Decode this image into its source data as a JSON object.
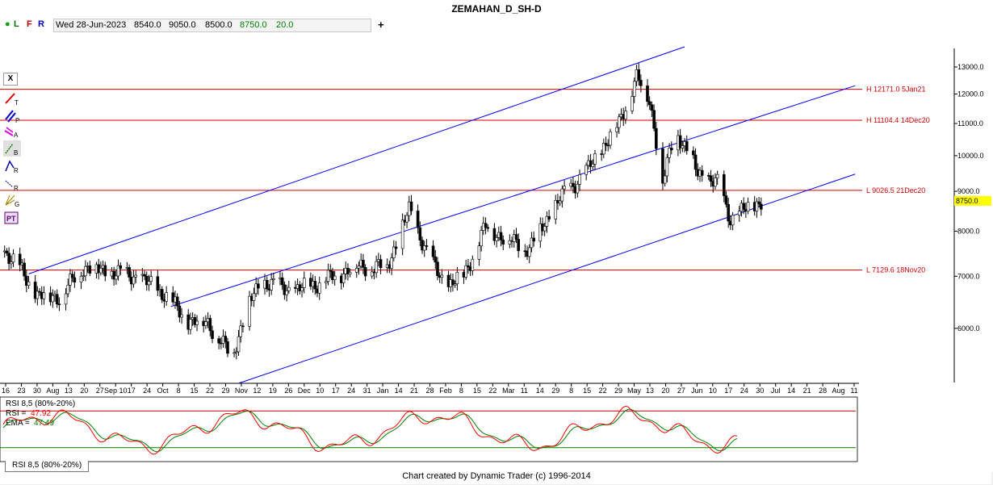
{
  "title": "ZEMAHAN_D_SH-D",
  "info": {
    "indicators": [
      "L",
      "F",
      "R"
    ],
    "date": "Wed 28-Jun-2023",
    "open": "8540.0",
    "high": "9050.0",
    "low": "8500.0",
    "close": "8750.0",
    "change": "20.0"
  },
  "toolbar": {
    "close_label": "X",
    "tools": [
      "T",
      "P",
      "A",
      "B",
      "R",
      "R",
      "G",
      "PT"
    ]
  },
  "rsi_tab": "RSI 8,5 (80%-20%)",
  "footer": "Chart created by Dynamic Trader  (c) 1996-2014",
  "chart_data": [
    {
      "type": "candlestick",
      "title": "ZEMAHAN_D_SH-D",
      "y_axis": {
        "scale": "log",
        "ticks": [
          "6000.0",
          "7000.0",
          "8000.0",
          "9000.0",
          "10000.0",
          "11000.0",
          "12000.0",
          "13000.0"
        ],
        "range": [
          5100,
          13800
        ]
      },
      "x_tick_labels": [
        "16",
        "23",
        "30",
        "Aug",
        "13",
        "20",
        "27",
        "Sep 10",
        "17",
        "24",
        "Oct",
        "8",
        "15",
        "22",
        "29",
        "Nov",
        "12",
        "19",
        "26",
        "Dec",
        "10",
        "17",
        "24",
        "31",
        "Jan",
        "14",
        "21",
        "28",
        "Feb",
        "8",
        "15",
        "22",
        "Mar",
        "11",
        "14",
        "29",
        "8",
        "15",
        "22",
        "29",
        "May",
        "13",
        "20",
        "27",
        "Jun",
        "10",
        "17",
        "24",
        "30",
        "Jul",
        "14",
        "21",
        "28",
        "Aug",
        "11"
      ],
      "x_range": [
        "2022-07-16",
        "2023-08-11"
      ],
      "last_price": "8750.0",
      "price_lines": [
        {
          "label": "H 12171.0 5Jan21",
          "value": 12171.0,
          "color": "#d00000"
        },
        {
          "label": "H 11104.4 14Dec20",
          "value": 11104.4,
          "color": "#d00000"
        },
        {
          "label": "L 9026.5 21Dec20",
          "value": 9026.5,
          "color": "#d00000"
        },
        {
          "label": "L 7129.6 18Nov20",
          "value": 7129.6,
          "color": "#d00000"
        }
      ],
      "channel_lines": [
        {
          "from": [
            "2022-07-28",
            7050
          ],
          "to": [
            "2023-05-24",
            13800
          ],
          "color": "#0000ff"
        },
        {
          "from": [
            "2022-10-01",
            6400
          ],
          "to": [
            "2023-08-10",
            12300
          ],
          "color": "#0000ff"
        },
        {
          "from": [
            "2022-11-01",
            5100
          ],
          "to": [
            "2023-08-10",
            9470
          ],
          "color": "#0000ff"
        }
      ],
      "close_path": [
        [
          "2022-07-16",
          7600
        ],
        [
          "2022-07-25",
          7100
        ],
        [
          "2022-08-01",
          6600
        ],
        [
          "2022-08-12",
          6600
        ],
        [
          "2022-08-22",
          7200
        ],
        [
          "2022-09-01",
          7100
        ],
        [
          "2022-09-15",
          7000
        ],
        [
          "2022-09-28",
          6650
        ],
        [
          "2022-10-08",
          6150
        ],
        [
          "2022-10-18",
          6100
        ],
        [
          "2022-10-29",
          5500
        ],
        [
          "2022-11-05",
          6400
        ],
        [
          "2022-11-12",
          6900
        ],
        [
          "2022-11-26",
          6700
        ],
        [
          "2022-12-10",
          6900
        ],
        [
          "2022-12-24",
          7200
        ],
        [
          "2023-01-08",
          7200
        ],
        [
          "2023-01-18",
          8500
        ],
        [
          "2023-01-28",
          7300
        ],
        [
          "2023-02-04",
          6800
        ],
        [
          "2023-02-12",
          7000
        ],
        [
          "2023-02-22",
          8100
        ],
        [
          "2023-03-04",
          7800
        ],
        [
          "2023-03-14",
          7600
        ],
        [
          "2023-03-28",
          8800
        ],
        [
          "2023-04-10",
          9600
        ],
        [
          "2023-04-24",
          11000
        ],
        [
          "2023-05-02",
          12600
        ],
        [
          "2023-05-08",
          11800
        ],
        [
          "2023-05-14",
          9200
        ],
        [
          "2023-05-20",
          10800
        ],
        [
          "2023-05-30",
          9500
        ],
        [
          "2023-06-08",
          9200
        ],
        [
          "2023-06-14",
          8300
        ],
        [
          "2023-06-28",
          8750
        ]
      ]
    },
    {
      "type": "line",
      "title": "RSI 8,5 (80%-20%)",
      "series": [
        {
          "name": "RSI",
          "last_value": "47.92",
          "color": "#ff0000"
        },
        {
          "name": "EMA",
          "last_value": "47.49",
          "color": "#008000"
        }
      ],
      "levels": [
        80,
        20
      ],
      "ylim": [
        0,
        100
      ]
    }
  ]
}
